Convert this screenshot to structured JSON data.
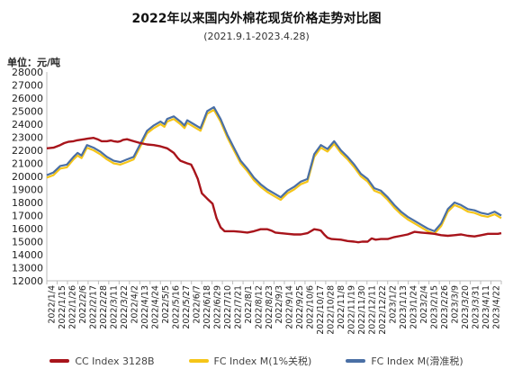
{
  "chart_data": {
    "type": "line",
    "title": "2022年以来国内外棉花现货价格走势对比图",
    "subtitle": "(2021.9.1-2023.4.28)",
    "unit_label": "单位：元/吨",
    "ylim": [
      12000,
      28000
    ],
    "y_ticks": [
      12000,
      13000,
      14000,
      15000,
      16000,
      17000,
      18000,
      19000,
      20000,
      21000,
      22000,
      23000,
      24000,
      25000,
      26000,
      27000,
      28000
    ],
    "x_tick_labels": [
      "2022/1/4",
      "2022/1/15",
      "2022/1/26",
      "2022/2/6",
      "2022/2/17",
      "2022/2/28",
      "2022/3/11",
      "2022/3/22",
      "2022/4/2",
      "2022/4/13",
      "2022/4/24",
      "2022/5/5",
      "2022/5/16",
      "2022/5/27",
      "2022/6/7",
      "2022/6/18",
      "2022/6/29",
      "2022/7/10",
      "2022/7/21",
      "2022/8/1",
      "2022/8/12",
      "2022/8/23",
      "2022/9/3",
      "2022/9/14",
      "2022/9/25",
      "2022/10/6",
      "2022/10/17",
      "2022/10/28",
      "2022/11/8",
      "2022/11/19",
      "2022/11/30",
      "2022/12/11",
      "2022/12/22",
      "2023/1/2",
      "2023/1/13",
      "2023/1/24",
      "2023/2/4",
      "2023/2/15",
      "2023/2/26",
      "2023/3/9",
      "2023/3/20",
      "2023/3/31",
      "2023/4/11",
      "2023/4/22"
    ],
    "legend_position": "bottom",
    "series": [
      {
        "name": "CC Index 3128B",
        "color": "#a8141b",
        "points": [
          [
            0,
            22150
          ],
          [
            1,
            22200
          ],
          [
            2,
            22400
          ],
          [
            2.6,
            22550
          ],
          [
            3.2,
            22650
          ],
          [
            4,
            22700
          ],
          [
            4.4,
            22750
          ],
          [
            5.6,
            22850
          ],
          [
            6.2,
            22900
          ],
          [
            7,
            22950
          ],
          [
            7.6,
            22850
          ],
          [
            8.2,
            22700
          ],
          [
            9,
            22700
          ],
          [
            9.6,
            22750
          ],
          [
            10,
            22700
          ],
          [
            10.6,
            22650
          ],
          [
            11,
            22700
          ],
          [
            11.4,
            22800
          ],
          [
            12,
            22850
          ],
          [
            13,
            22700
          ],
          [
            14,
            22550
          ],
          [
            15,
            22450
          ],
          [
            16,
            22400
          ],
          [
            17,
            22300
          ],
          [
            18,
            22150
          ],
          [
            19,
            21800
          ],
          [
            19.6,
            21400
          ],
          [
            20,
            21200
          ],
          [
            21,
            21000
          ],
          [
            21.6,
            20900
          ],
          [
            22,
            20500
          ],
          [
            22.6,
            19800
          ],
          [
            23.2,
            18700
          ],
          [
            24,
            18300
          ],
          [
            24.8,
            17900
          ],
          [
            25.4,
            16800
          ],
          [
            26,
            16100
          ],
          [
            26.6,
            15800
          ],
          [
            28,
            15800
          ],
          [
            29,
            15750
          ],
          [
            30,
            15700
          ],
          [
            31,
            15800
          ],
          [
            32,
            15950
          ],
          [
            33,
            15950
          ],
          [
            33.6,
            15850
          ],
          [
            34.2,
            15700
          ],
          [
            35,
            15650
          ],
          [
            36,
            15600
          ],
          [
            37,
            15550
          ],
          [
            38,
            15550
          ],
          [
            39,
            15650
          ],
          [
            40,
            15950
          ],
          [
            40.6,
            15900
          ],
          [
            41,
            15850
          ],
          [
            41.6,
            15500
          ],
          [
            42,
            15300
          ],
          [
            42.6,
            15200
          ],
          [
            44,
            15150
          ],
          [
            45,
            15050
          ],
          [
            46,
            15000
          ],
          [
            46.6,
            14950
          ],
          [
            47.2,
            15000
          ],
          [
            48,
            15000
          ],
          [
            48.6,
            15250
          ],
          [
            49.2,
            15150
          ],
          [
            50,
            15200
          ],
          [
            51,
            15200
          ],
          [
            52,
            15350
          ],
          [
            53,
            15450
          ],
          [
            54,
            15550
          ],
          [
            55,
            15750
          ],
          [
            56,
            15700
          ],
          [
            57,
            15650
          ],
          [
            58,
            15600
          ],
          [
            59,
            15500
          ],
          [
            60,
            15450
          ],
          [
            61,
            15500
          ],
          [
            62,
            15550
          ],
          [
            63,
            15450
          ],
          [
            64,
            15400
          ],
          [
            65,
            15500
          ],
          [
            66,
            15600
          ],
          [
            67,
            15600
          ],
          [
            67.5,
            15600
          ],
          [
            68,
            15650
          ]
        ]
      },
      {
        "name": "FC Index M(1%关税)",
        "color": "#f5c518",
        "points": [
          [
            0,
            19900
          ],
          [
            1,
            20100
          ],
          [
            2,
            20600
          ],
          [
            3,
            20700
          ],
          [
            4,
            21300
          ],
          [
            4.6,
            21600
          ],
          [
            5.2,
            21400
          ],
          [
            6,
            22200
          ],
          [
            7,
            22000
          ],
          [
            8,
            21700
          ],
          [
            9,
            21300
          ],
          [
            10,
            21000
          ],
          [
            11,
            20900
          ],
          [
            12,
            21100
          ],
          [
            13,
            21300
          ],
          [
            14,
            22300
          ],
          [
            15,
            23300
          ],
          [
            16,
            23700
          ],
          [
            17,
            24000
          ],
          [
            17.6,
            23800
          ],
          [
            18,
            24200
          ],
          [
            19,
            24400
          ],
          [
            20,
            24000
          ],
          [
            20.6,
            23700
          ],
          [
            21,
            24100
          ],
          [
            22,
            23800
          ],
          [
            23,
            23500
          ],
          [
            24,
            24800
          ],
          [
            25,
            25100
          ],
          [
            26,
            24200
          ],
          [
            27,
            23000
          ],
          [
            28,
            22000
          ],
          [
            29,
            21000
          ],
          [
            30,
            20400
          ],
          [
            31,
            19700
          ],
          [
            32,
            19200
          ],
          [
            33,
            18800
          ],
          [
            34,
            18500
          ],
          [
            35,
            18200
          ],
          [
            36,
            18700
          ],
          [
            37,
            19000
          ],
          [
            38,
            19400
          ],
          [
            39,
            19600
          ],
          [
            40,
            21500
          ],
          [
            41,
            22200
          ],
          [
            42,
            21900
          ],
          [
            43,
            22500
          ],
          [
            44,
            21800
          ],
          [
            45,
            21300
          ],
          [
            46,
            20700
          ],
          [
            47,
            20000
          ],
          [
            48,
            19600
          ],
          [
            49,
            18900
          ],
          [
            50,
            18700
          ],
          [
            51,
            18200
          ],
          [
            52,
            17600
          ],
          [
            53,
            17100
          ],
          [
            54,
            16700
          ],
          [
            55,
            16400
          ],
          [
            56,
            16100
          ],
          [
            57,
            15800
          ],
          [
            58,
            15600
          ],
          [
            59,
            16200
          ],
          [
            60,
            17300
          ],
          [
            61,
            17800
          ],
          [
            62,
            17600
          ],
          [
            63,
            17300
          ],
          [
            64,
            17200
          ],
          [
            65,
            17000
          ],
          [
            66,
            16900
          ],
          [
            67,
            17100
          ],
          [
            68,
            16800
          ]
        ]
      },
      {
        "name": "FC Index M(滑准税)",
        "color": "#4a6fa5",
        "points": [
          [
            0,
            20100
          ],
          [
            1,
            20300
          ],
          [
            2,
            20800
          ],
          [
            3,
            20900
          ],
          [
            4,
            21500
          ],
          [
            4.6,
            21800
          ],
          [
            5.2,
            21600
          ],
          [
            6,
            22400
          ],
          [
            7,
            22200
          ],
          [
            8,
            21900
          ],
          [
            9,
            21500
          ],
          [
            10,
            21200
          ],
          [
            11,
            21100
          ],
          [
            12,
            21300
          ],
          [
            13,
            21500
          ],
          [
            14,
            22500
          ],
          [
            15,
            23500
          ],
          [
            16,
            23900
          ],
          [
            17,
            24200
          ],
          [
            17.6,
            24000
          ],
          [
            18,
            24400
          ],
          [
            19,
            24600
          ],
          [
            20,
            24200
          ],
          [
            20.6,
            23900
          ],
          [
            21,
            24300
          ],
          [
            22,
            24000
          ],
          [
            23,
            23700
          ],
          [
            24,
            25000
          ],
          [
            25,
            25300
          ],
          [
            26,
            24400
          ],
          [
            27,
            23200
          ],
          [
            28,
            22200
          ],
          [
            29,
            21200
          ],
          [
            30,
            20600
          ],
          [
            31,
            19900
          ],
          [
            32,
            19400
          ],
          [
            33,
            19000
          ],
          [
            34,
            18700
          ],
          [
            35,
            18400
          ],
          [
            36,
            18900
          ],
          [
            37,
            19200
          ],
          [
            38,
            19600
          ],
          [
            39,
            19800
          ],
          [
            40,
            21700
          ],
          [
            41,
            22400
          ],
          [
            42,
            22100
          ],
          [
            43,
            22700
          ],
          [
            44,
            22000
          ],
          [
            45,
            21500
          ],
          [
            46,
            20900
          ],
          [
            47,
            20200
          ],
          [
            48,
            19800
          ],
          [
            49,
            19100
          ],
          [
            50,
            18900
          ],
          [
            51,
            18400
          ],
          [
            52,
            17800
          ],
          [
            53,
            17300
          ],
          [
            54,
            16900
          ],
          [
            55,
            16600
          ],
          [
            56,
            16300
          ],
          [
            57,
            16000
          ],
          [
            58,
            15800
          ],
          [
            59,
            16400
          ],
          [
            60,
            17500
          ],
          [
            61,
            18000
          ],
          [
            62,
            17800
          ],
          [
            63,
            17500
          ],
          [
            64,
            17400
          ],
          [
            65,
            17200
          ],
          [
            66,
            17100
          ],
          [
            67,
            17300
          ],
          [
            68,
            17000
          ]
        ]
      }
    ]
  }
}
